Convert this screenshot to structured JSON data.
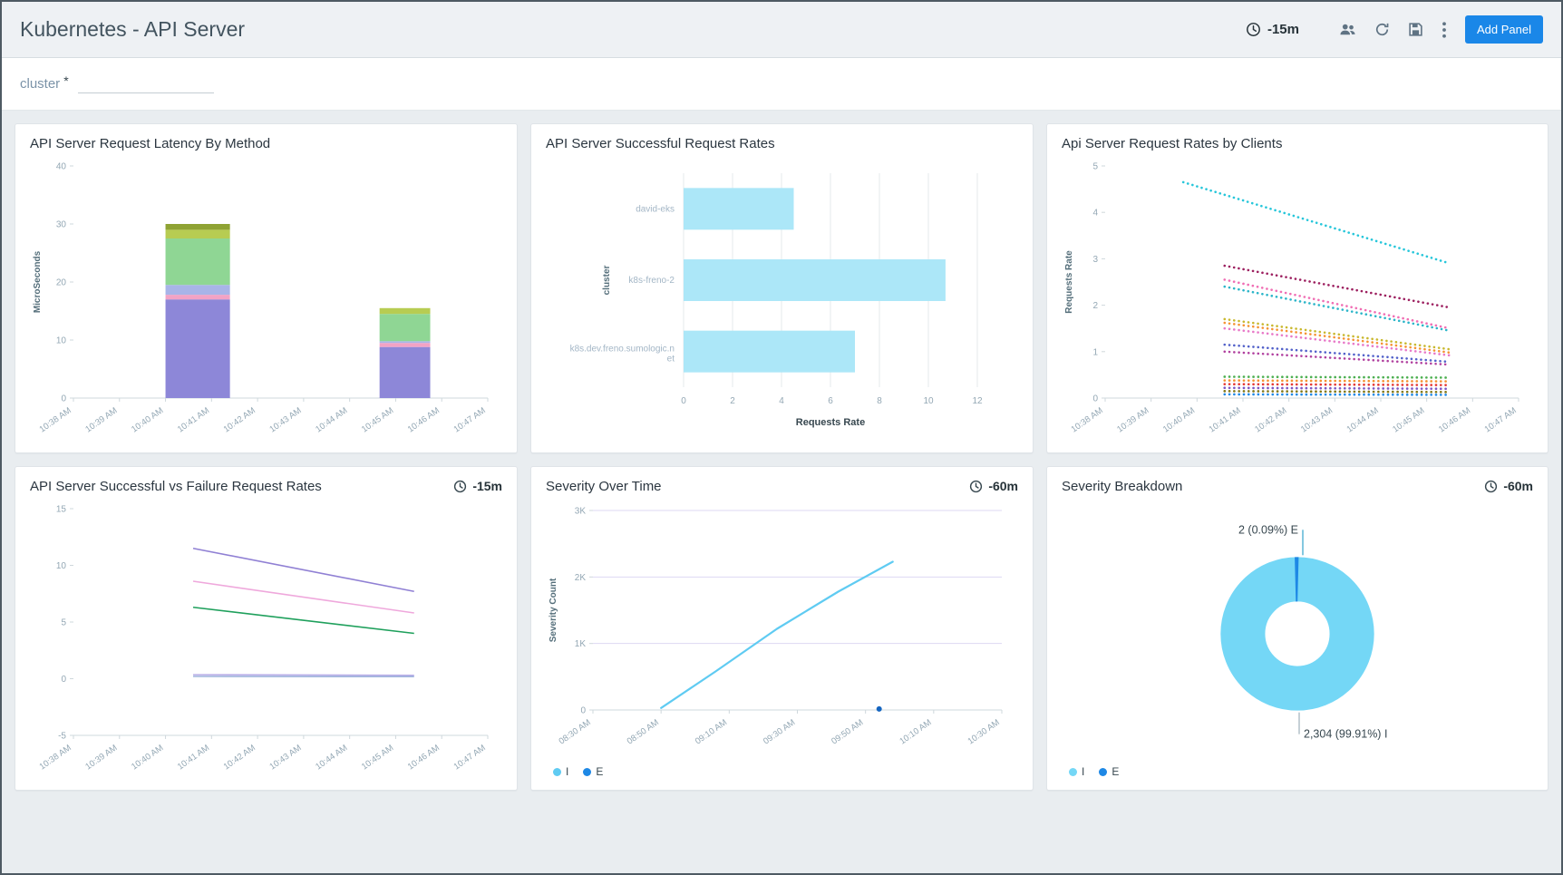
{
  "header": {
    "title": "Kubernetes - API Server",
    "time_range": "-15m",
    "add_panel": "Add Panel"
  },
  "filter": {
    "label": "cluster",
    "required_mark": "*",
    "value": ""
  },
  "chart_data": [
    {
      "type": "stacked_bar",
      "title": "API Server Request Latency By Method",
      "ylabel": "MicroSeconds",
      "ylim": [
        0,
        40
      ],
      "yticks": [
        0,
        10,
        20,
        30,
        40
      ],
      "x_ticks": [
        "10:38 AM",
        "10:39 AM",
        "10:40 AM",
        "10:41 AM",
        "10:42 AM",
        "10:43 AM",
        "10:44 AM",
        "10:45 AM",
        "10:46 AM",
        "10:47 AM"
      ],
      "bars": [
        {
          "center": 2.7,
          "width": 1.4,
          "segments": [
            [
              17,
              "#8d87d8"
            ],
            [
              0.8,
              "#f2a3c5"
            ],
            [
              1.7,
              "#a8b4e8"
            ],
            [
              8,
              "#8fd694"
            ],
            [
              1.5,
              "#b7cc52"
            ],
            [
              1,
              "#8fa334"
            ]
          ]
        },
        {
          "center": 7.2,
          "width": 1.1,
          "segments": [
            [
              8.8,
              "#8d87d8"
            ],
            [
              0.7,
              "#f2a3c5"
            ],
            [
              0.3,
              "#a8b4e8"
            ],
            [
              4.7,
              "#8fd694"
            ],
            [
              1,
              "#b7cc52"
            ]
          ]
        }
      ]
    },
    {
      "type": "hbar",
      "title": "API Server Successful Request Rates",
      "xlabel": "Requests Rate",
      "ylabel": "cluster",
      "xlim": [
        0,
        12
      ],
      "xticks": [
        0,
        2,
        4,
        6,
        8,
        10,
        12
      ],
      "bar_color": "#ace7f8",
      "categories": [
        "david-eks",
        "k8s-freno-2",
        "k8s.dev.freno.sumologic.net"
      ],
      "values": [
        4.5,
        10.7,
        7
      ]
    },
    {
      "type": "dot_lines",
      "title": "Api Server Request Rates by Clients",
      "ylabel": "Requests Rate",
      "ylim": [
        0,
        5
      ],
      "yticks": [
        0,
        1,
        2,
        3,
        4,
        5
      ],
      "x_ticks": [
        "10:38 AM",
        "10:39 AM",
        "10:40 AM",
        "10:41 AM",
        "10:42 AM",
        "10:43 AM",
        "10:44 AM",
        "10:45 AM",
        "10:46 AM",
        "10:47 AM"
      ],
      "series": [
        {
          "color": "#26c6da",
          "x0": 1.7,
          "y0": 4.65,
          "x1": 7.5,
          "y1": 2.9
        },
        {
          "color": "#9c1f5f",
          "x0": 2.6,
          "y0": 2.85,
          "x1": 7.5,
          "y1": 1.95
        },
        {
          "color": "#f06eb4",
          "x0": 2.6,
          "y0": 2.55,
          "x1": 7.5,
          "y1": 1.5
        },
        {
          "color": "#2bb5c9",
          "x0": 2.6,
          "y0": 2.4,
          "x1": 7.5,
          "y1": 1.45
        },
        {
          "color": "#c9b82e",
          "x0": 2.6,
          "y0": 1.7,
          "x1": 7.5,
          "y1": 1.05
        },
        {
          "color": "#f59231",
          "x0": 2.6,
          "y0": 1.62,
          "x1": 7.5,
          "y1": 0.98
        },
        {
          "color": "#e879c8",
          "x0": 2.6,
          "y0": 1.5,
          "x1": 7.5,
          "y1": 0.92
        },
        {
          "color": "#5160c9",
          "x0": 2.6,
          "y0": 1.15,
          "x1": 7.5,
          "y1": 0.78
        },
        {
          "color": "#b03f9e",
          "x0": 2.6,
          "y0": 1.0,
          "x1": 7.5,
          "y1": 0.72
        },
        {
          "color": "#4caf50",
          "x0": 2.6,
          "y0": 0.46,
          "x1": 7.5,
          "y1": 0.44
        },
        {
          "color": "#f59231",
          "x0": 2.6,
          "y0": 0.38,
          "x1": 7.5,
          "y1": 0.36
        },
        {
          "color": "#e53935",
          "x0": 2.6,
          "y0": 0.3,
          "x1": 7.5,
          "y1": 0.28
        },
        {
          "color": "#7e57c2",
          "x0": 2.6,
          "y0": 0.22,
          "x1": 7.5,
          "y1": 0.2
        },
        {
          "color": "#827717",
          "x0": 2.6,
          "y0": 0.15,
          "x1": 7.5,
          "y1": 0.13
        },
        {
          "color": "#1e88e5",
          "x0": 2.6,
          "y0": 0.08,
          "x1": 7.5,
          "y1": 0.07
        }
      ]
    },
    {
      "type": "lines",
      "title": "API Server Successful vs Failure Request Rates",
      "timestamp": "-15m",
      "ylim": [
        -5,
        15
      ],
      "yticks": [
        -5,
        0,
        5,
        10,
        15
      ],
      "x_ticks": [
        "10:38 AM",
        "10:39 AM",
        "10:40 AM",
        "10:41 AM",
        "10:42 AM",
        "10:43 AM",
        "10:44 AM",
        "10:45 AM",
        "10:46 AM",
        "10:47 AM"
      ],
      "series": [
        {
          "color": "#9080d4",
          "x0": 2.6,
          "y0": 11.5,
          "x1": 7.4,
          "y1": 7.7
        },
        {
          "color": "#efa8dc",
          "x0": 2.6,
          "y0": 8.6,
          "x1": 7.4,
          "y1": 5.8
        },
        {
          "color": "#1fa05c",
          "x0": 2.6,
          "y0": 6.3,
          "x1": 7.4,
          "y1": 4.0
        },
        {
          "color": "#b9aee8",
          "x0": 2.6,
          "y0": 0.35,
          "x1": 7.4,
          "y1": 0.3
        },
        {
          "color": "#9fb4dc",
          "x0": 2.6,
          "y0": 0.2,
          "x1": 7.4,
          "y1": 0.18
        }
      ]
    },
    {
      "type": "time_line",
      "title": "Severity Over Time",
      "timestamp": "-60m",
      "ylabel": "Severity Count",
      "ylim": [
        0,
        3000
      ],
      "yticks": [
        [
          0,
          "0"
        ],
        [
          1000,
          "1K"
        ],
        [
          2000,
          "2K"
        ],
        [
          3000,
          "3K"
        ]
      ],
      "x_ticks": [
        "08:30 AM",
        "08:50 AM",
        "09:10 AM",
        "09:30 AM",
        "09:50 AM",
        "10:10 AM",
        "10:30 AM"
      ],
      "grid_color": "#ddd8f3",
      "series": [
        {
          "name": "I",
          "color": "#5fcbf2",
          "points": [
            [
              1.0,
              30
            ],
            [
              1.8,
              580
            ],
            [
              2.7,
              1220
            ],
            [
              3.6,
              1780
            ],
            [
              4.4,
              2230
            ]
          ]
        }
      ],
      "dots": [
        {
          "name": "E",
          "color": "#1565c0",
          "x": 4.2,
          "y": 15
        }
      ],
      "legend": [
        {
          "label": "I",
          "color": "#5fcbf2"
        },
        {
          "label": "E",
          "color": "#1e88e5"
        }
      ]
    },
    {
      "type": "donut",
      "title": "Severity Breakdown",
      "timestamp": "-60m",
      "slices": [
        {
          "label": "I",
          "value": 2304,
          "color": "#74d7f6"
        },
        {
          "label": "E",
          "value": 2,
          "color": "#1e88e5"
        }
      ],
      "callout_top": "2 (0.09%) E",
      "callout_bottom": "2,304 (99.91%) I",
      "legend": [
        {
          "label": "I",
          "color": "#74d7f6"
        },
        {
          "label": "E",
          "color": "#1e88e5"
        }
      ]
    }
  ]
}
